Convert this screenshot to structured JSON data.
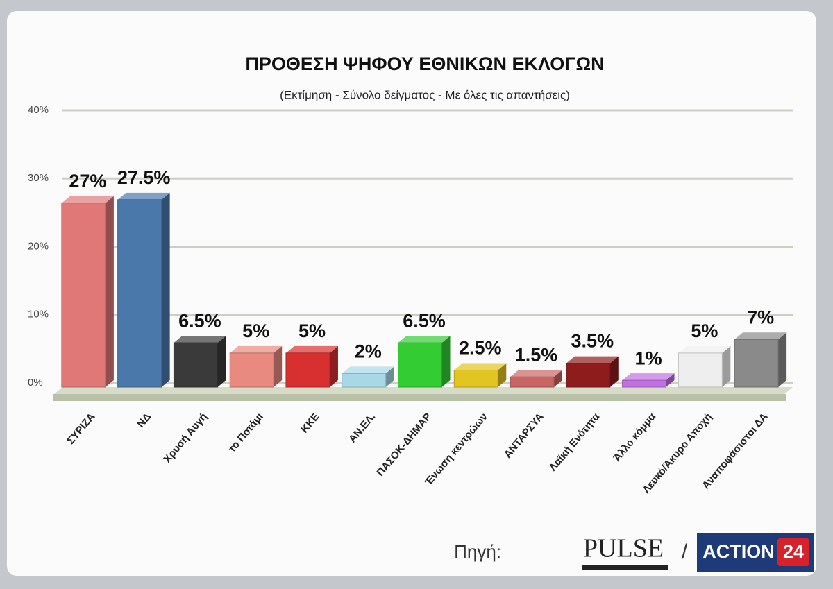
{
  "chart_data": {
    "type": "bar3d",
    "title": "ΠΡΟΘΕΣΗ ΨΗΦΟΥ ΕΘΝΙΚΩΝ ΕΚΛΟΓΩΝ",
    "subtitle": "(Εκτίμηση - Σύνολο δείγματος - Με όλες τις απαντήσεις)",
    "categories": [
      "ΣΥΡΙΖΑ",
      "ΝΔ",
      "Χρυσή Αυγή",
      "το Ποτάμι",
      "ΚΚΕ",
      "ΑΝ.ΕΛ.",
      "ΠΑΣΟΚ-ΔΗΜΑΡ",
      "Ένωση κεντρώων",
      "ΑΝΤΑΡΣΥΑ",
      "Λαϊκή Ενότητα",
      "Άλλο κόμμα",
      "Λευκό/Άκυρο Αποχή",
      "Αναποφάσιστοι ΔΑ"
    ],
    "values": [
      27,
      27.5,
      6.5,
      5,
      5,
      2,
      6.5,
      2.5,
      1.5,
      3.5,
      1,
      5,
      7
    ],
    "value_labels": [
      "27%",
      "27.5%",
      "6.5%",
      "5%",
      "5%",
      "2%",
      "6.5%",
      "2.5%",
      "1.5%",
      "3.5%",
      "1%",
      "5%",
      "7%"
    ],
    "colors": [
      "#e07878",
      "#4a78aa",
      "#3a3a3a",
      "#e88a80",
      "#d83030",
      "#a8d8e6",
      "#33cc33",
      "#e2c422",
      "#c86464",
      "#8e1c1c",
      "#c070e0",
      "#eeeeee",
      "#8a8a8a"
    ],
    "ylim": [
      0,
      40
    ],
    "yticks": [
      {
        "value": 0,
        "label": "0%"
      },
      {
        "value": 10,
        "label": "10%"
      },
      {
        "value": 20,
        "label": "20%"
      },
      {
        "value": 30,
        "label": "30%"
      },
      {
        "value": 40,
        "label": "40%"
      }
    ],
    "grid": true
  },
  "footer": {
    "source_label": "Πηγή:",
    "logo_left": "PULSE",
    "separator": "/",
    "logo_right": "ACTION",
    "logo_right_number": "24"
  }
}
